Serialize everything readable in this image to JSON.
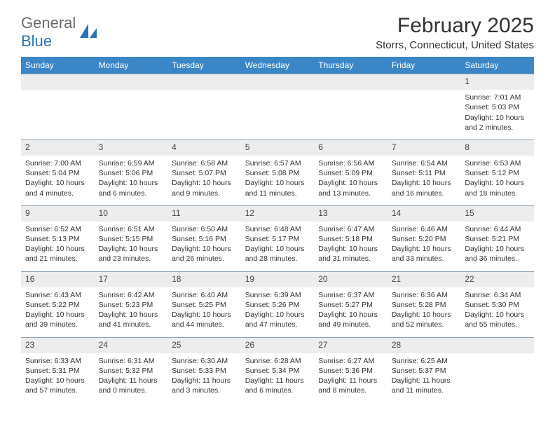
{
  "brand": {
    "top": "General",
    "bottom": "Blue",
    "logo_color": "#2a73b8",
    "text_top_color": "#6b6b6b",
    "text_bottom_color": "#2a73b8"
  },
  "title": "February 2025",
  "location": "Storrs, Connecticut, United States",
  "colors": {
    "header_bg": "#3b86c6",
    "header_text": "#ffffff",
    "row_border": "#8fa3b3",
    "daynum_bg": "#ededed",
    "body_bg": "#ffffff",
    "text": "#333333"
  },
  "weekdays": [
    "Sunday",
    "Monday",
    "Tuesday",
    "Wednesday",
    "Thursday",
    "Friday",
    "Saturday"
  ],
  "cell_font_size": 10.5,
  "weeks": [
    [
      null,
      null,
      null,
      null,
      null,
      null,
      {
        "n": "1",
        "sunrise": "Sunrise: 7:01 AM",
        "sunset": "Sunset: 5:03 PM",
        "daylight": "Daylight: 10 hours and 2 minutes."
      }
    ],
    [
      {
        "n": "2",
        "sunrise": "Sunrise: 7:00 AM",
        "sunset": "Sunset: 5:04 PM",
        "daylight": "Daylight: 10 hours and 4 minutes."
      },
      {
        "n": "3",
        "sunrise": "Sunrise: 6:59 AM",
        "sunset": "Sunset: 5:06 PM",
        "daylight": "Daylight: 10 hours and 6 minutes."
      },
      {
        "n": "4",
        "sunrise": "Sunrise: 6:58 AM",
        "sunset": "Sunset: 5:07 PM",
        "daylight": "Daylight: 10 hours and 9 minutes."
      },
      {
        "n": "5",
        "sunrise": "Sunrise: 6:57 AM",
        "sunset": "Sunset: 5:08 PM",
        "daylight": "Daylight: 10 hours and 11 minutes."
      },
      {
        "n": "6",
        "sunrise": "Sunrise: 6:56 AM",
        "sunset": "Sunset: 5:09 PM",
        "daylight": "Daylight: 10 hours and 13 minutes."
      },
      {
        "n": "7",
        "sunrise": "Sunrise: 6:54 AM",
        "sunset": "Sunset: 5:11 PM",
        "daylight": "Daylight: 10 hours and 16 minutes."
      },
      {
        "n": "8",
        "sunrise": "Sunrise: 6:53 AM",
        "sunset": "Sunset: 5:12 PM",
        "daylight": "Daylight: 10 hours and 18 minutes."
      }
    ],
    [
      {
        "n": "9",
        "sunrise": "Sunrise: 6:52 AM",
        "sunset": "Sunset: 5:13 PM",
        "daylight": "Daylight: 10 hours and 21 minutes."
      },
      {
        "n": "10",
        "sunrise": "Sunrise: 6:51 AM",
        "sunset": "Sunset: 5:15 PM",
        "daylight": "Daylight: 10 hours and 23 minutes."
      },
      {
        "n": "11",
        "sunrise": "Sunrise: 6:50 AM",
        "sunset": "Sunset: 5:16 PM",
        "daylight": "Daylight: 10 hours and 26 minutes."
      },
      {
        "n": "12",
        "sunrise": "Sunrise: 6:48 AM",
        "sunset": "Sunset: 5:17 PM",
        "daylight": "Daylight: 10 hours and 28 minutes."
      },
      {
        "n": "13",
        "sunrise": "Sunrise: 6:47 AM",
        "sunset": "Sunset: 5:18 PM",
        "daylight": "Daylight: 10 hours and 31 minutes."
      },
      {
        "n": "14",
        "sunrise": "Sunrise: 6:46 AM",
        "sunset": "Sunset: 5:20 PM",
        "daylight": "Daylight: 10 hours and 33 minutes."
      },
      {
        "n": "15",
        "sunrise": "Sunrise: 6:44 AM",
        "sunset": "Sunset: 5:21 PM",
        "daylight": "Daylight: 10 hours and 36 minutes."
      }
    ],
    [
      {
        "n": "16",
        "sunrise": "Sunrise: 6:43 AM",
        "sunset": "Sunset: 5:22 PM",
        "daylight": "Daylight: 10 hours and 39 minutes."
      },
      {
        "n": "17",
        "sunrise": "Sunrise: 6:42 AM",
        "sunset": "Sunset: 5:23 PM",
        "daylight": "Daylight: 10 hours and 41 minutes."
      },
      {
        "n": "18",
        "sunrise": "Sunrise: 6:40 AM",
        "sunset": "Sunset: 5:25 PM",
        "daylight": "Daylight: 10 hours and 44 minutes."
      },
      {
        "n": "19",
        "sunrise": "Sunrise: 6:39 AM",
        "sunset": "Sunset: 5:26 PM",
        "daylight": "Daylight: 10 hours and 47 minutes."
      },
      {
        "n": "20",
        "sunrise": "Sunrise: 6:37 AM",
        "sunset": "Sunset: 5:27 PM",
        "daylight": "Daylight: 10 hours and 49 minutes."
      },
      {
        "n": "21",
        "sunrise": "Sunrise: 6:36 AM",
        "sunset": "Sunset: 5:28 PM",
        "daylight": "Daylight: 10 hours and 52 minutes."
      },
      {
        "n": "22",
        "sunrise": "Sunrise: 6:34 AM",
        "sunset": "Sunset: 5:30 PM",
        "daylight": "Daylight: 10 hours and 55 minutes."
      }
    ],
    [
      {
        "n": "23",
        "sunrise": "Sunrise: 6:33 AM",
        "sunset": "Sunset: 5:31 PM",
        "daylight": "Daylight: 10 hours and 57 minutes."
      },
      {
        "n": "24",
        "sunrise": "Sunrise: 6:31 AM",
        "sunset": "Sunset: 5:32 PM",
        "daylight": "Daylight: 11 hours and 0 minutes."
      },
      {
        "n": "25",
        "sunrise": "Sunrise: 6:30 AM",
        "sunset": "Sunset: 5:33 PM",
        "daylight": "Daylight: 11 hours and 3 minutes."
      },
      {
        "n": "26",
        "sunrise": "Sunrise: 6:28 AM",
        "sunset": "Sunset: 5:34 PM",
        "daylight": "Daylight: 11 hours and 6 minutes."
      },
      {
        "n": "27",
        "sunrise": "Sunrise: 6:27 AM",
        "sunset": "Sunset: 5:36 PM",
        "daylight": "Daylight: 11 hours and 8 minutes."
      },
      {
        "n": "28",
        "sunrise": "Sunrise: 6:25 AM",
        "sunset": "Sunset: 5:37 PM",
        "daylight": "Daylight: 11 hours and 11 minutes."
      },
      null
    ]
  ]
}
